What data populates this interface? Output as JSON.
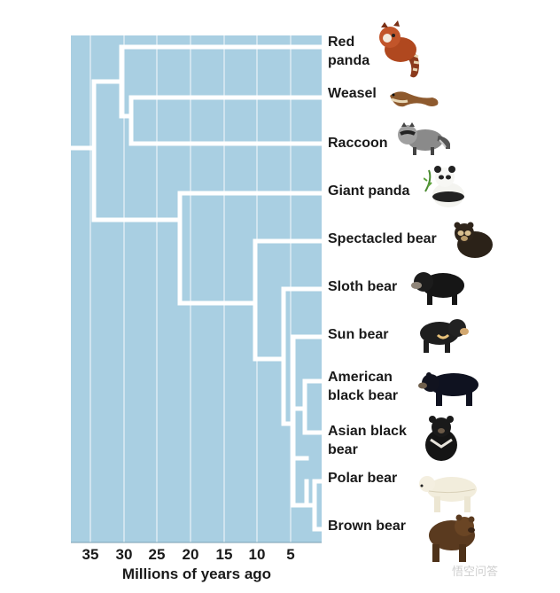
{
  "diagram": {
    "axis_title": "Millions of years ago",
    "ticks": [
      "35",
      "30",
      "25",
      "20",
      "15",
      "10",
      "5"
    ],
    "background_color": "#a9cfe2",
    "branch_color": "#ffffff",
    "leaves": [
      {
        "label": "Red panda",
        "icon": "red-panda-icon"
      },
      {
        "label": "Weasel",
        "icon": "weasel-icon"
      },
      {
        "label": "Raccoon",
        "icon": "raccoon-icon"
      },
      {
        "label": "Giant panda",
        "icon": "giant-panda-icon"
      },
      {
        "label": "Spectacled bear",
        "icon": "spectacled-bear-icon"
      },
      {
        "label": "Sloth bear",
        "icon": "sloth-bear-icon"
      },
      {
        "label": "Sun bear",
        "icon": "sun-bear-icon"
      },
      {
        "label": "American black bear",
        "icon": "american-black-bear-icon"
      },
      {
        "label": "Asian black bear",
        "icon": "asian-black-bear-icon"
      },
      {
        "label": "Polar bear",
        "icon": "polar-bear-icon"
      },
      {
        "label": "Brown bear",
        "icon": "brown-bear-icon"
      }
    ],
    "watermark": "悟空问答"
  }
}
